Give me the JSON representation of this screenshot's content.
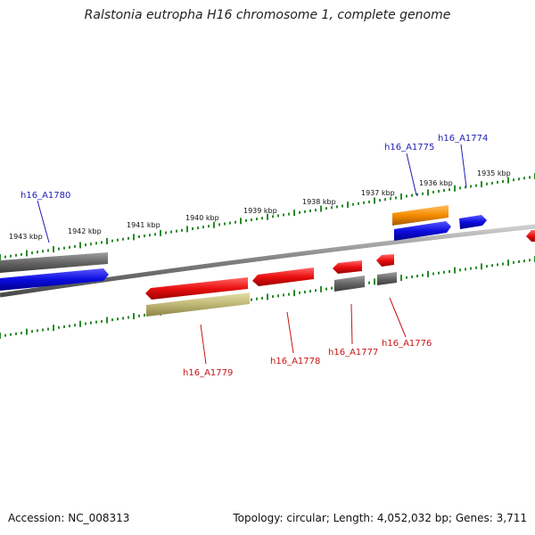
{
  "title": "Ralstonia eutropha H16 chromosome 1, complete genome",
  "footer": {
    "accession": "Accession: NC_008313",
    "summary": "Topology: circular; Length: 4,052,032 bp; Genes: 3,711"
  },
  "scale_labels": [
    "1943 kbp",
    "1942 kbp",
    "1941 kbp",
    "1940 kbp",
    "1939 kbp",
    "1938 kbp",
    "1937 kbp",
    "1936 kbp",
    "1935 kbp"
  ],
  "gene_labels": {
    "top": [
      "h16_A1780",
      "h16_A1775",
      "h16_A1774"
    ],
    "bottom": [
      "h16_A1779",
      "h16_A1778",
      "h16_A1777",
      "h16_A1776"
    ]
  },
  "colors": {
    "backbone": "#7a7a7a",
    "tick": "#2a8a2a",
    "gene_blue": "#1414d8",
    "gene_red": "#e41010",
    "gene_gray": "#606060",
    "gene_orange": "#f08a00",
    "gene_olive": "#b8b070",
    "label_top": "#1d1db5",
    "label_bottom": "#c81414"
  }
}
